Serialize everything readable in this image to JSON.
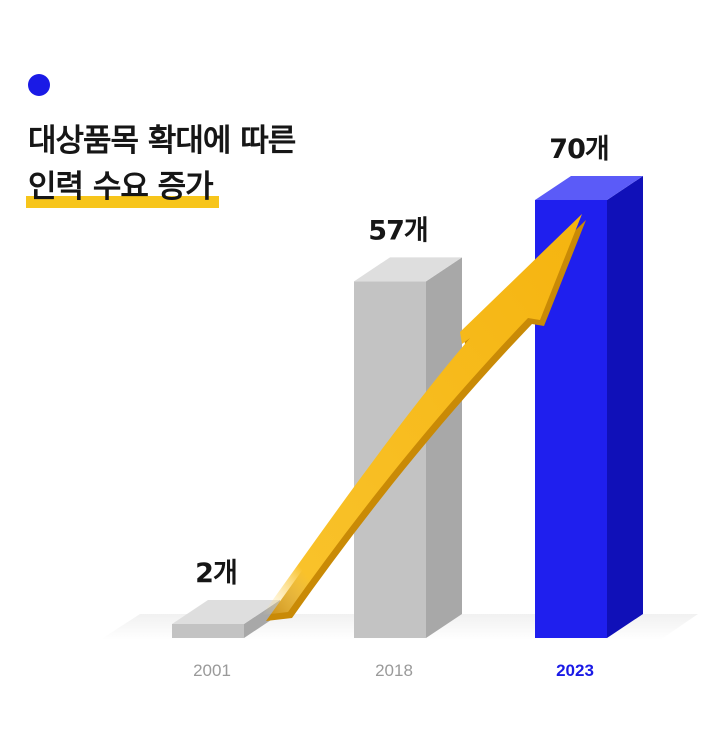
{
  "header": {
    "title_line1": "대상품목 확대에 따른",
    "title_line2": "인력 수요 증가"
  },
  "chart_data": {
    "type": "bar",
    "categories": [
      "2001",
      "2018",
      "2023"
    ],
    "values": [
      2,
      57,
      70
    ],
    "value_labels": [
      "2개",
      "57개",
      "70개"
    ],
    "highlight_index": 2,
    "colors": {
      "default_bar": "#c3c3c3",
      "highlight_bar": "#1f1fee",
      "arrow": "#f7b719",
      "highlight_text": "#1a1ae6"
    },
    "ylim": [
      0,
      70
    ],
    "annotation": "rising-arrow"
  }
}
